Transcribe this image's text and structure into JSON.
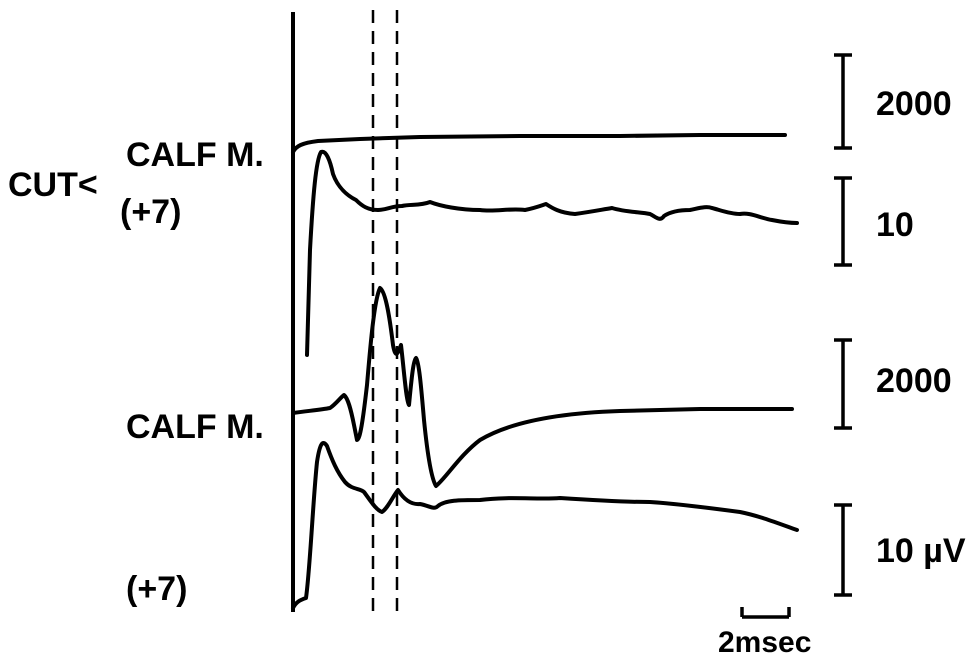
{
  "labels": {
    "cut": "CUT<",
    "calf_upper": "CALF M.",
    "plus7_upper": "(+7)",
    "calf_lower": "CALF M.",
    "plus7_lower": "(+7)"
  },
  "scale_bars": [
    {
      "label": "2000"
    },
    {
      "label": "10"
    },
    {
      "label": "2000"
    },
    {
      "label": "10 µV"
    }
  ],
  "time_scale": {
    "label": "2msec"
  },
  "colors": {
    "ink": "#000000",
    "background": "#ffffff"
  }
}
